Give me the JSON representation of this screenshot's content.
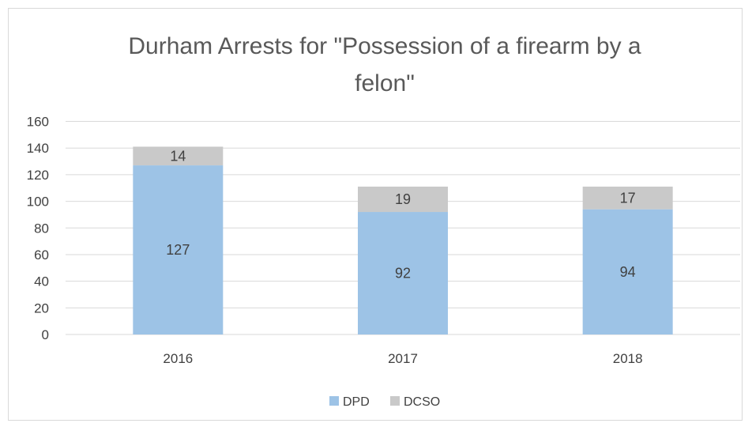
{
  "chart_data": {
    "type": "bar",
    "stacked": true,
    "title_lines": [
      "Durham Arrests for \"Possession of a firearm by a",
      "felon\""
    ],
    "categories": [
      "2016",
      "2017",
      "2018"
    ],
    "series": [
      {
        "name": "DPD",
        "values": [
          127,
          92,
          94
        ],
        "color": "#9DC3E6"
      },
      {
        "name": "DCSO",
        "values": [
          14,
          19,
          17
        ],
        "color": "#C9C9C9"
      }
    ],
    "ylim": [
      0,
      160
    ],
    "yticks": [
      "0",
      "20",
      "40",
      "60",
      "80",
      "100",
      "120",
      "140",
      "160"
    ],
    "grid": true,
    "legend_position": "bottom",
    "gridline_color": "#d9d9d9"
  }
}
